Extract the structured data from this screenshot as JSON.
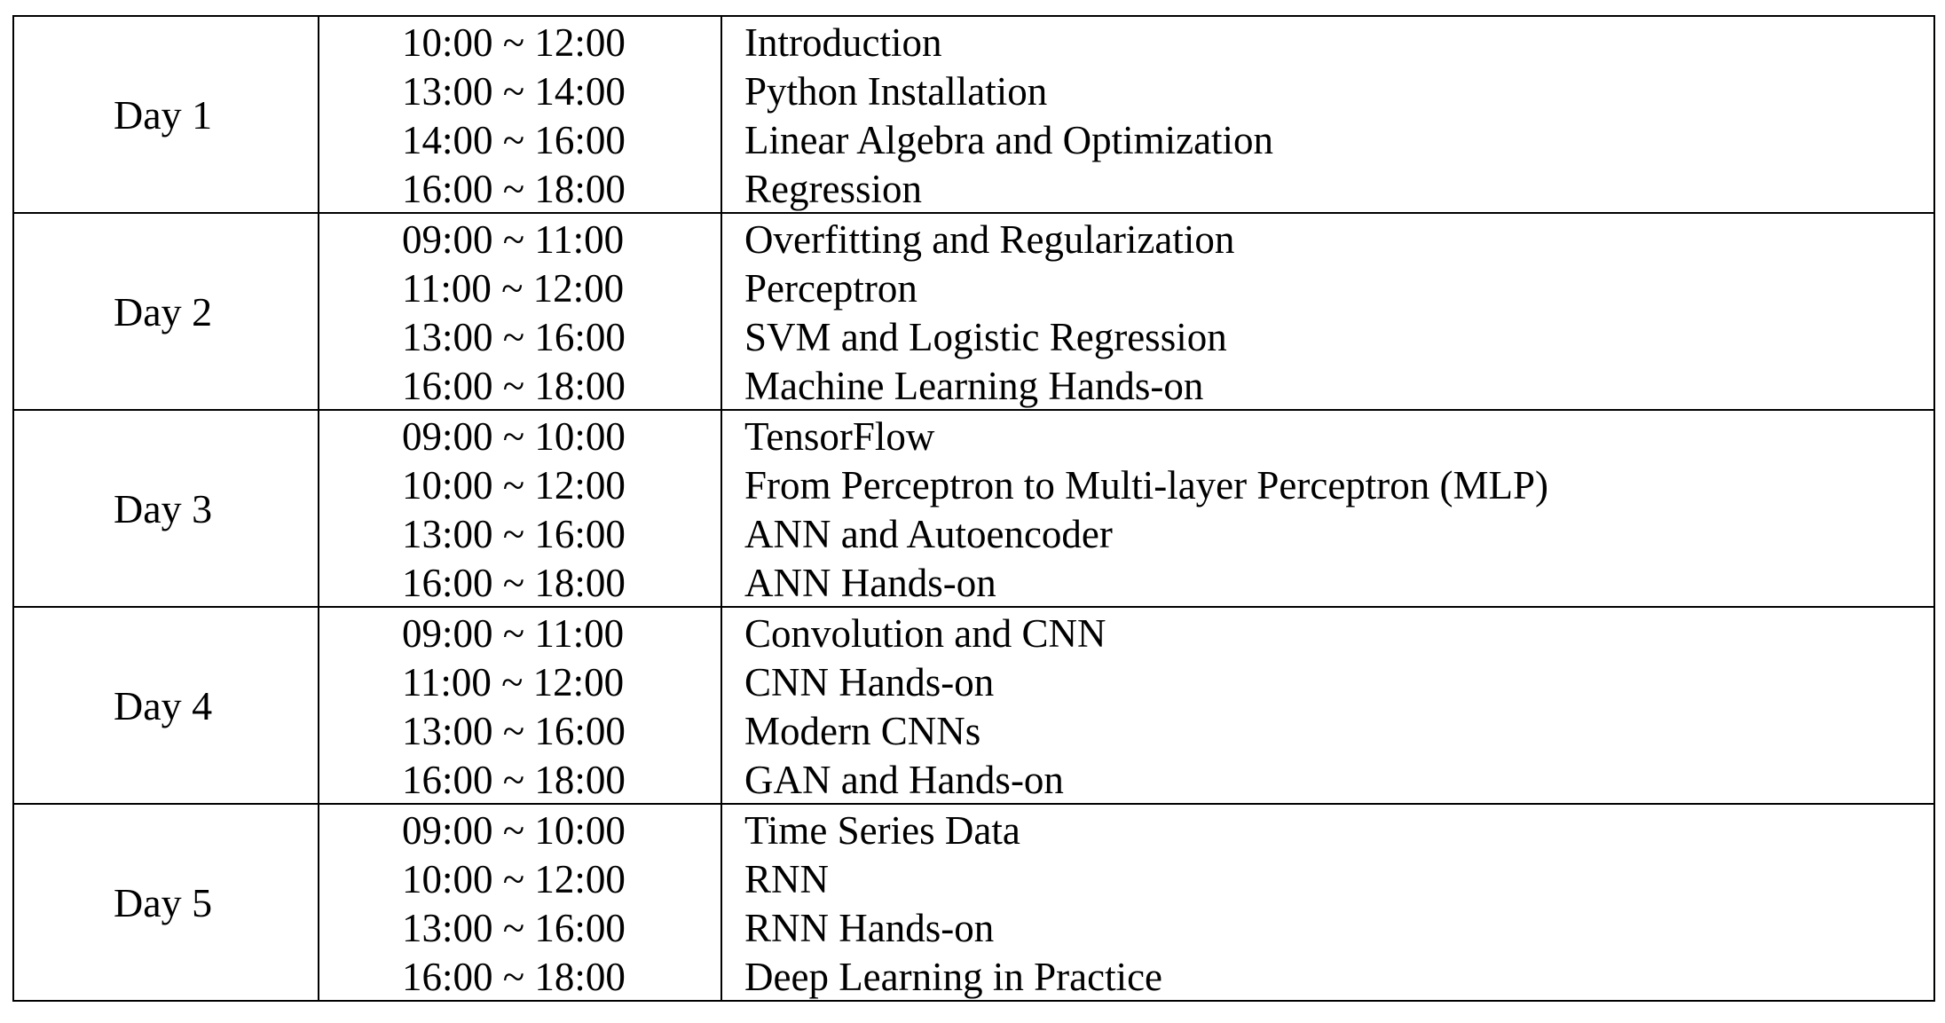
{
  "schedule": [
    {
      "day": "Day 1",
      "sessions": [
        {
          "time": "10:00 ~ 12:00",
          "topic": "Introduction"
        },
        {
          "time": "13:00 ~ 14:00",
          "topic": "Python Installation"
        },
        {
          "time": "14:00 ~ 16:00",
          "topic": "Linear Algebra and Optimization"
        },
        {
          "time": "16:00 ~ 18:00",
          "topic": "Regression"
        }
      ]
    },
    {
      "day": "Day 2",
      "sessions": [
        {
          "time": "09:00 ~ 11:00",
          "topic": "Overfitting and Regularization"
        },
        {
          "time": "11:00 ~ 12:00",
          "topic": "Perceptron"
        },
        {
          "time": "13:00 ~ 16:00",
          "topic": "SVM and Logistic Regression"
        },
        {
          "time": "16:00 ~ 18:00",
          "topic": "Machine Learning Hands-on"
        }
      ]
    },
    {
      "day": "Day 3",
      "sessions": [
        {
          "time": "09:00 ~ 10:00",
          "topic": "TensorFlow"
        },
        {
          "time": "10:00 ~ 12:00",
          "topic": "From Perceptron to Multi-layer Perceptron (MLP)"
        },
        {
          "time": "13:00 ~ 16:00",
          "topic": "ANN and Autoencoder"
        },
        {
          "time": "16:00 ~ 18:00",
          "topic": "ANN Hands-on"
        }
      ]
    },
    {
      "day": "Day 4",
      "sessions": [
        {
          "time": "09:00 ~ 11:00",
          "topic": "Convolution and CNN"
        },
        {
          "time": "11:00 ~ 12:00",
          "topic": "CNN Hands-on"
        },
        {
          "time": "13:00 ~ 16:00",
          "topic": "Modern CNNs"
        },
        {
          "time": "16:00 ~ 18:00",
          "topic": "GAN and Hands-on"
        }
      ]
    },
    {
      "day": "Day 5",
      "sessions": [
        {
          "time": "09:00 ~ 10:00",
          "topic": "Time Series Data"
        },
        {
          "time": "10:00 ~ 12:00",
          "topic": "RNN"
        },
        {
          "time": "13:00 ~ 16:00",
          "topic": "RNN Hands-on"
        },
        {
          "time": "16:00 ~ 18:00",
          "topic": "Deep Learning in Practice"
        }
      ]
    }
  ]
}
